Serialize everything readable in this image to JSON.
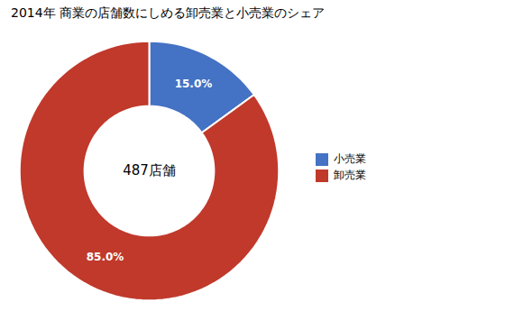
{
  "chart_data": {
    "type": "pie",
    "title": "2014年 商業の店舗数にしめる卸売業と小売業のシェア",
    "categories": [
      "小売業",
      "卸売業"
    ],
    "values": [
      15.0,
      85.0
    ],
    "value_labels": [
      "15.0%",
      "85.0%"
    ],
    "colors": [
      "#4472C4",
      "#C0392B"
    ],
    "annotations": [
      {
        "text": "487店舗"
      }
    ],
    "data_labels": true,
    "legend": "right"
  }
}
